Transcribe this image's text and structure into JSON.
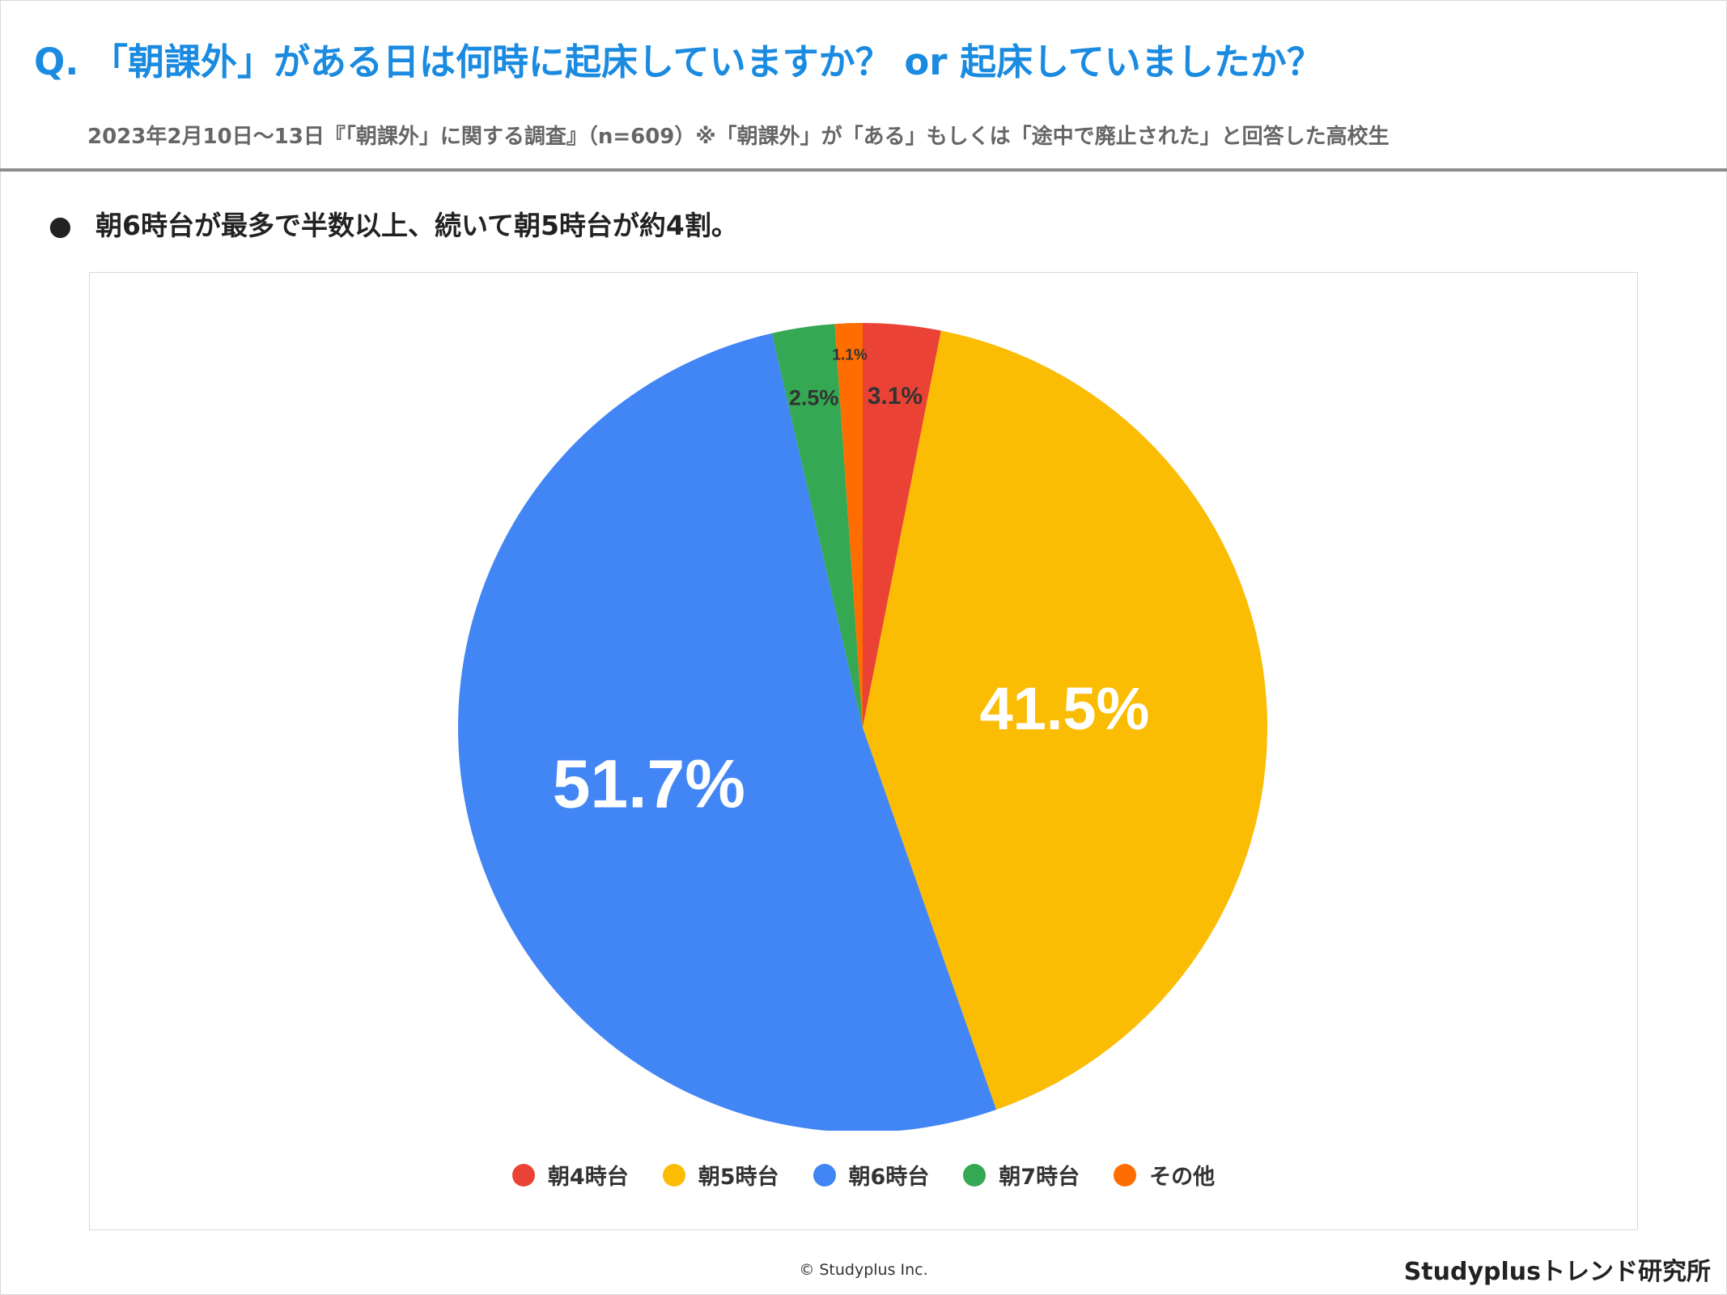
{
  "header": {
    "title": "Q. 「朝課外」がある日は何時に起床していますか？ or 起床していましたか？",
    "subtitle": "2023年2月10日～13日『「朝課外」に関する調査』（n=609）※「朝課外」が「ある」もしくは「途中で廃止された」と回答した高校生"
  },
  "summary": {
    "bullet": "●",
    "text": "朝6時台が最多で半数以上、続いて朝5時台が約4割。"
  },
  "chart_data": {
    "type": "pie",
    "categories": [
      "朝4時台",
      "朝5時台",
      "朝6時台",
      "朝7時台",
      "その他"
    ],
    "values": [
      3.1,
      41.5,
      51.7,
      2.5,
      1.1
    ],
    "labels": [
      "3.1%",
      "41.5%",
      "51.7%",
      "2.5%",
      "1.1%"
    ],
    "colors": [
      "#ea4335",
      "#fbbc04",
      "#4285f4",
      "#34a853",
      "#ff6d01"
    ],
    "start": "12 o'clock",
    "direction": "clockwise",
    "legend_position": "bottom"
  },
  "footer": {
    "copyright": "© Studyplus Inc.",
    "brand": "Studyplusトレンド研究所"
  }
}
